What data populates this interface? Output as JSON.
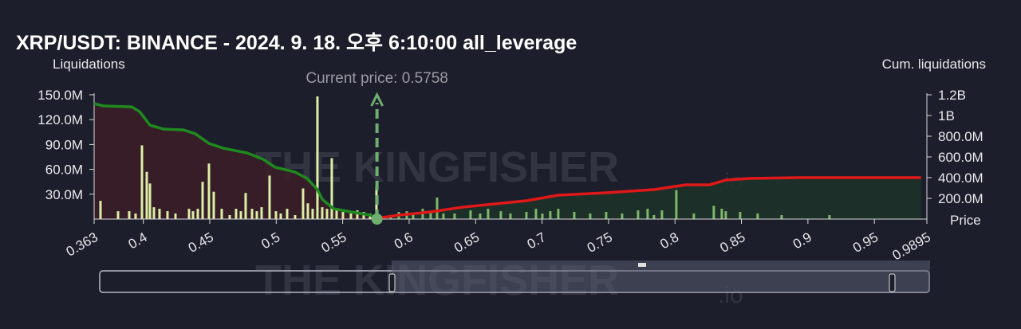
{
  "chart_data": {
    "type": "bar",
    "title": "XRP/USDT: BINANCE - 2024. 9. 18. 오후 6:10:00 all_leverage",
    "y_label": "Liquidations",
    "y2_label": "Cum. liquidations",
    "x_label": "Price",
    "watermark": "THE KINGFISHER",
    "watermark_suffix": ".io",
    "annotation": {
      "label": "Current price: 0.5758",
      "value": 0.5758
    },
    "xlim": [
      0.363,
      0.9895
    ],
    "xticks": [
      0.363,
      0.4,
      0.45,
      0.5,
      0.55,
      0.6,
      0.65,
      0.7,
      0.75,
      0.8,
      0.85,
      0.9,
      0.95,
      0.9895
    ],
    "ylim": [
      0,
      150000000
    ],
    "yticks": [
      {
        "value": 30000000,
        "label": "30.0M"
      },
      {
        "value": 60000000,
        "label": "60.0M"
      },
      {
        "value": 90000000,
        "label": "90.0M"
      },
      {
        "value": 120000000,
        "label": "120.0M"
      },
      {
        "value": 150000000,
        "label": "150.0M"
      }
    ],
    "y2lim": [
      0,
      1200000000
    ],
    "y2ticks": [
      {
        "value": 200000000,
        "label": "200.0M"
      },
      {
        "value": 400000000,
        "label": "400.0M"
      },
      {
        "value": 600000000,
        "label": "600.0M"
      },
      {
        "value": 800000000,
        "label": "800.0M"
      },
      {
        "value": 1000000000,
        "label": "1B"
      },
      {
        "value": 1200000000,
        "label": "1.2B"
      }
    ],
    "series": [
      {
        "type": "bar",
        "color": "#dcefa6",
        "x": [
          0.3678,
          0.381,
          0.3894,
          0.3942,
          0.399,
          0.4026,
          0.405,
          0.408,
          0.4122,
          0.4182,
          0.4242,
          0.4344,
          0.4374,
          0.441,
          0.4446,
          0.4494,
          0.453,
          0.459,
          0.465,
          0.4698,
          0.4734,
          0.477,
          0.4818,
          0.4854,
          0.489,
          0.495,
          0.4998,
          0.5034,
          0.5082,
          0.5142,
          0.5202,
          0.5238,
          0.5274,
          0.531,
          0.5346,
          0.5382,
          0.5418,
          0.5454,
          0.5502,
          0.5562,
          0.561,
          0.5658,
          0.5706,
          0.5754
        ],
        "values": [
          22000000,
          9500000,
          9500000,
          6700000,
          89000000,
          57000000,
          43000000,
          14300000,
          12400000,
          9500000,
          6700000,
          12400000,
          9500000,
          12400000,
          45000000,
          67000000,
          33000000,
          12400000,
          4800000,
          12400000,
          9500000,
          31500000,
          12400000,
          9500000,
          14300000,
          52500000,
          9500000,
          6700000,
          12400000,
          4800000,
          37000000,
          19000000,
          12400000,
          148000000,
          14300000,
          12400000,
          73500000,
          12400000,
          8600000,
          6700000,
          10500000,
          8600000,
          6700000,
          39000000
        ]
      },
      {
        "type": "bar",
        "color": "#7fb86a",
        "x": [
          0.5862,
          0.5922,
          0.5982,
          0.603,
          0.6102,
          0.6162,
          0.621,
          0.6258,
          0.6342,
          0.6462,
          0.6534,
          0.6594,
          0.669,
          0.6762,
          0.6882,
          0.6954,
          0.7002,
          0.7062,
          0.7122,
          0.7242,
          0.7362,
          0.7482,
          0.7602,
          0.7722,
          0.7794,
          0.7842,
          0.7902,
          0.801,
          0.8142,
          0.8292,
          0.8352,
          0.8382,
          0.849,
          0.8622,
          0.8802,
          0.9162
        ],
        "values": [
          4800000,
          8600000,
          9500000,
          6700000,
          12400000,
          9500000,
          26000000,
          6700000,
          6700000,
          10500000,
          6700000,
          12400000,
          9500000,
          6700000,
          8600000,
          12400000,
          6700000,
          9500000,
          12400000,
          8600000,
          6700000,
          8600000,
          6700000,
          10500000,
          12400000,
          4800000,
          10500000,
          35000000,
          6700000,
          16000000,
          12400000,
          9500000,
          8600000,
          6700000,
          4800000,
          4800000
        ]
      },
      {
        "type": "line",
        "axis": "y2",
        "color": "#1f8a1f",
        "fill": "#3b1d27",
        "x": [
          0.363,
          0.3702,
          0.3912,
          0.3972,
          0.405,
          0.4152,
          0.4302,
          0.4392,
          0.4494,
          0.4602,
          0.4782,
          0.4902,
          0.4992,
          0.5142,
          0.5232,
          0.531,
          0.5346,
          0.543,
          0.5562,
          0.5706,
          0.5758
        ],
        "values": [
          1115000000,
          1092000000,
          1084000000,
          1038000000,
          907000000,
          869000000,
          861000000,
          823000000,
          730000000,
          684000000,
          638000000,
          577000000,
          500000000,
          454000000,
          392000000,
          285000000,
          192000000,
          100000000,
          69000000,
          38000000,
          8000000
        ]
      },
      {
        "type": "line",
        "axis": "y2",
        "color": "#e01818",
        "fill": "#1c3328",
        "x": [
          0.5758,
          0.5922,
          0.6162,
          0.6402,
          0.6642,
          0.6882,
          0.7122,
          0.7482,
          0.7842,
          0.8082,
          0.8262,
          0.8382,
          0.8562,
          0.8922,
          0.9852
        ],
        "values": [
          8000000,
          38000000,
          69000000,
          115000000,
          146000000,
          177000000,
          231000000,
          254000000,
          285000000,
          331000000,
          331000000,
          377000000,
          392000000,
          400000000,
          400000000
        ]
      }
    ]
  }
}
